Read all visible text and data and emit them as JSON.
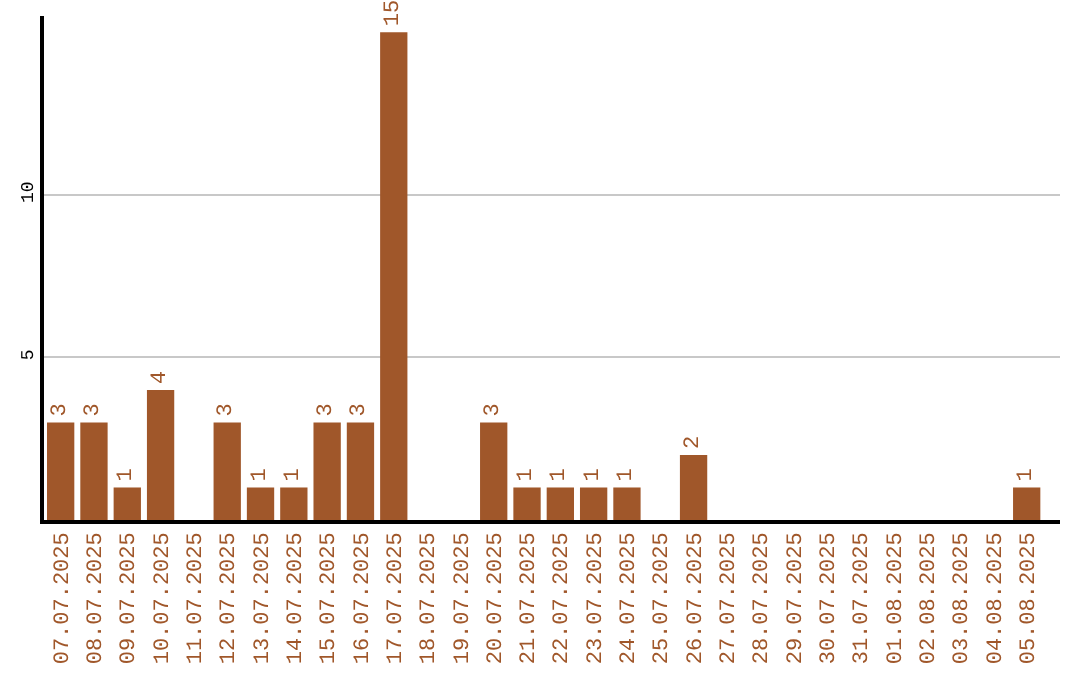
{
  "chart_data": {
    "type": "bar",
    "categories": [
      "07.07.2025",
      "08.07.2025",
      "09.07.2025",
      "10.07.2025",
      "11.07.2025",
      "12.07.2025",
      "13.07.2025",
      "14.07.2025",
      "15.07.2025",
      "16.07.2025",
      "17.07.2025",
      "18.07.2025",
      "19.07.2025",
      "20.07.2025",
      "21.07.2025",
      "22.07.2025",
      "23.07.2025",
      "24.07.2025",
      "25.07.2025",
      "26.07.2025",
      "27.07.2025",
      "28.07.2025",
      "29.07.2025",
      "30.07.2025",
      "31.07.2025",
      "01.08.2025",
      "02.08.2025",
      "03.08.2025",
      "04.08.2025",
      "05.08.2025"
    ],
    "values": [
      3,
      3,
      1,
      4,
      0,
      3,
      1,
      1,
      3,
      3,
      15,
      0,
      0,
      3,
      1,
      1,
      1,
      1,
      0,
      2,
      0,
      0,
      0,
      0,
      0,
      0,
      0,
      0,
      0,
      1
    ],
    "value_labels": [
      "3",
      "3",
      "1",
      "4",
      null,
      "3",
      "1",
      "1",
      "3",
      "3",
      "15",
      null,
      null,
      "3",
      "1",
      "1",
      "1",
      "1",
      null,
      "2",
      null,
      null,
      null,
      null,
      null,
      null,
      null,
      null,
      null,
      "1"
    ],
    "color": "#a0572a",
    "ylim": [
      0,
      15.5
    ],
    "yticks": [
      5,
      10
    ],
    "grid": "y"
  }
}
